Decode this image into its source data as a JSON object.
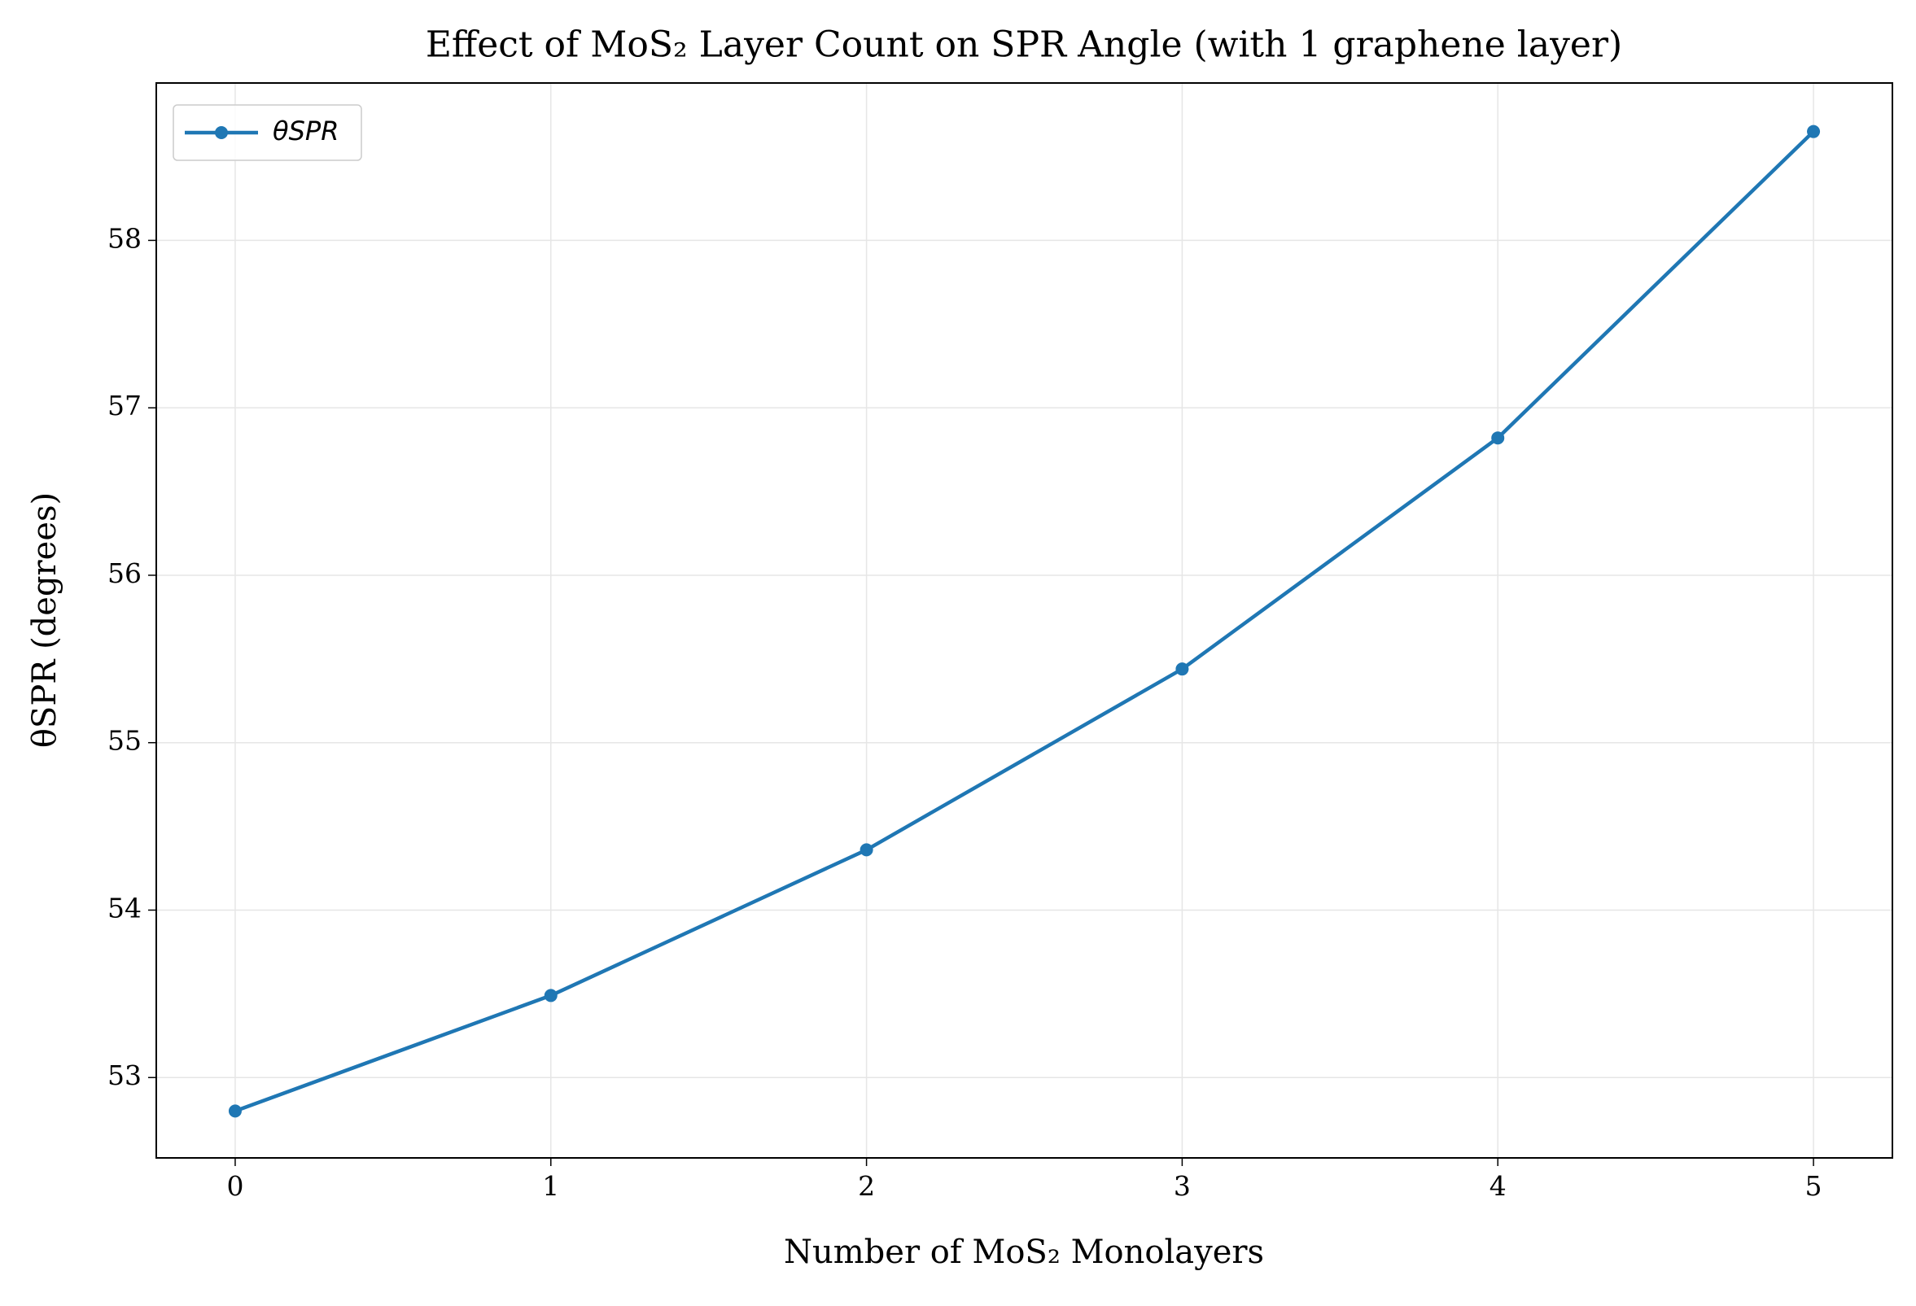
{
  "chart_data": {
    "type": "line",
    "title": "Effect of MoS₂ Layer Count on SPR Angle (with 1 graphene layer)",
    "x_label": "Number of MoS₂ Monolayers",
    "y_label": "θSPR (degrees)",
    "x": [
      0,
      1,
      2,
      3,
      4,
      5
    ],
    "series": [
      {
        "name": "θSPR",
        "color": "#1f77b4",
        "values": [
          52.8,
          53.49,
          54.36,
          55.44,
          56.82,
          58.65
        ]
      }
    ],
    "xlim": [
      -0.25,
      5.25
    ],
    "xticks": [
      0,
      1,
      2,
      3,
      4,
      5
    ],
    "ylim": [
      52.52,
      58.94
    ],
    "yticks": [
      53,
      54,
      55,
      56,
      57,
      58
    ],
    "grid": true,
    "legend": "upper left"
  }
}
